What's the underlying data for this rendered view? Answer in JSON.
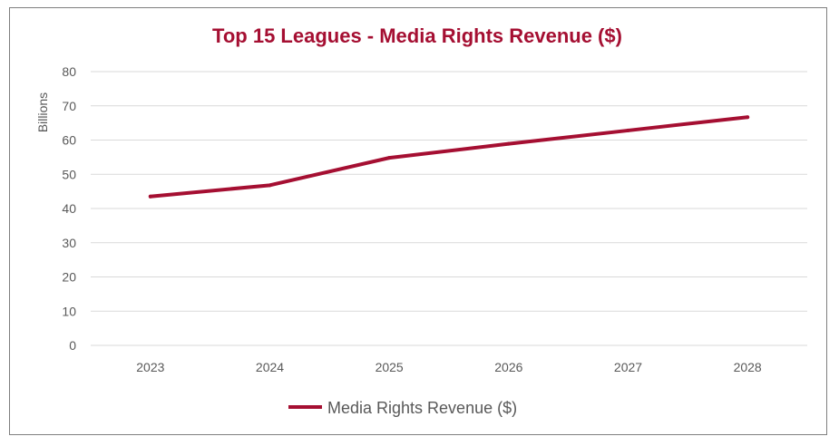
{
  "chart_data": {
    "type": "line",
    "title": "Top 15 Leagues - Media Rights Revenue ($)",
    "xlabel": "",
    "ylabel": "Billions",
    "categories": [
      "2023",
      "2024",
      "2025",
      "2026",
      "2027",
      "2028"
    ],
    "series": [
      {
        "name": "Media Rights Revenue ($)",
        "values": [
          43.5,
          46.8,
          54.8,
          58.9,
          62.8,
          66.7
        ]
      }
    ],
    "ylim": [
      0,
      80
    ],
    "yticks": [
      0,
      10,
      20,
      30,
      40,
      50,
      60,
      70,
      80
    ],
    "grid": true,
    "legend": "bottom",
    "colors": {
      "series": "#a50f32",
      "title": "#a50f32",
      "grid": "#d9d9d9",
      "text": "#595959"
    }
  }
}
